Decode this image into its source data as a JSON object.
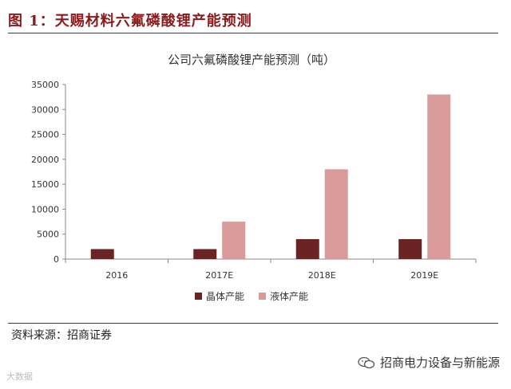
{
  "figure_title": "图 1：天赐材料六氟磷酸锂产能预测",
  "source": "资料来源：招商证券",
  "watermark": "大数据",
  "brand": "招商电力设备与新能源",
  "colors": {
    "title": "#8b1a1a",
    "crystal": "#6b2424",
    "liquid": "#d99a9a",
    "brand_icon": "wechat-icon"
  },
  "chart_data": {
    "type": "bar",
    "title": "公司六氟磷酸锂产能预测（吨）",
    "categories": [
      "2016",
      "2017E",
      "2018E",
      "2019E"
    ],
    "series": [
      {
        "name": "晶体产能",
        "values": [
          2000,
          2000,
          4000,
          4000
        ]
      },
      {
        "name": "液体产能",
        "values": [
          0,
          7500,
          18000,
          33000
        ]
      }
    ],
    "yticks": [
      "0",
      "5000",
      "10000",
      "15000",
      "20000",
      "25000",
      "30000",
      "35000"
    ],
    "ylim": [
      0,
      35000
    ],
    "legend_position": "bottom",
    "grid": false
  }
}
